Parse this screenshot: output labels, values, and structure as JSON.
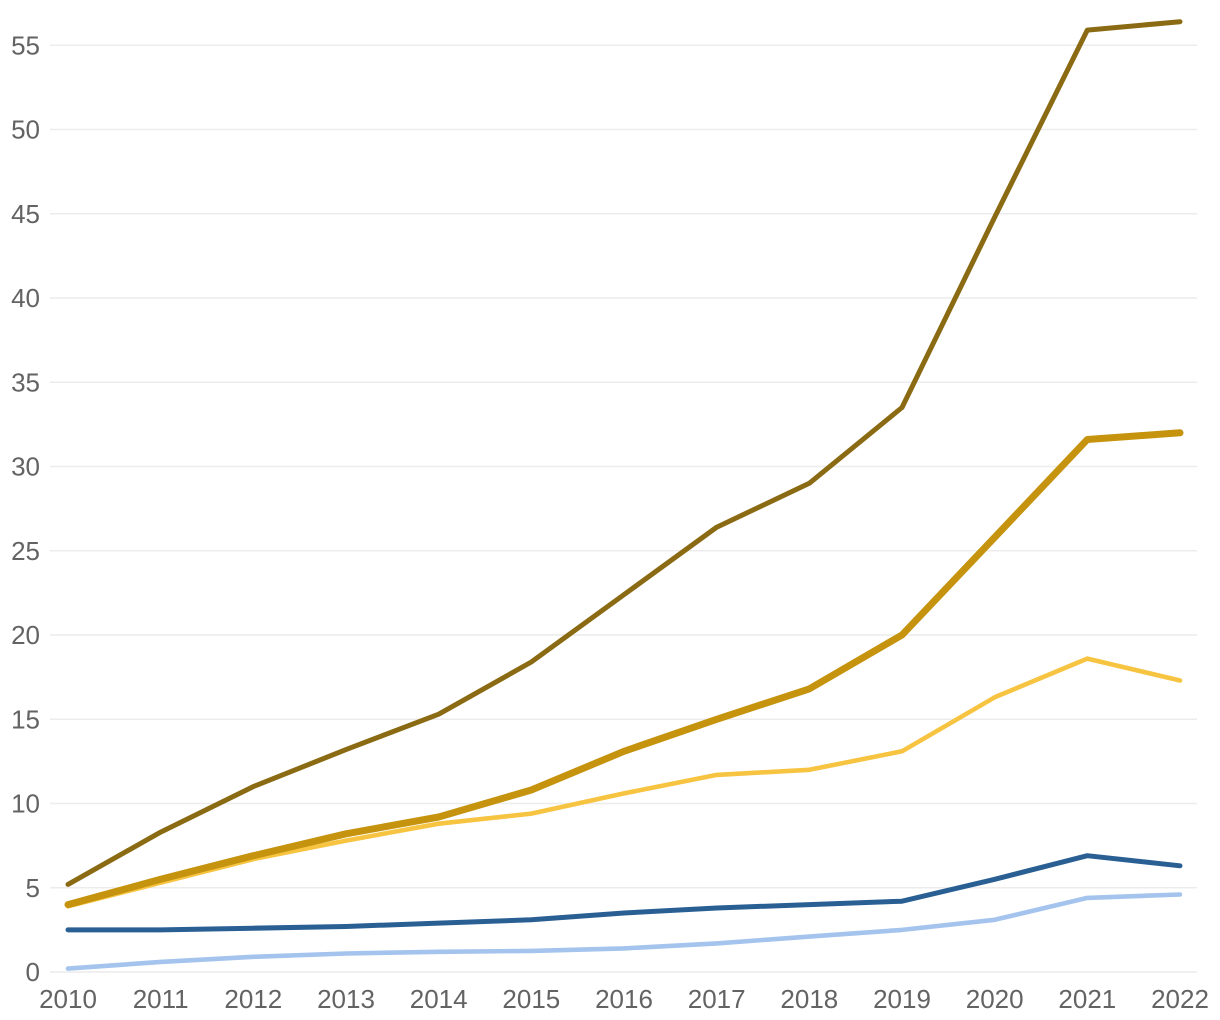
{
  "chart_data": {
    "type": "line",
    "title": "",
    "xlabel": "",
    "ylabel": "",
    "legend": "none",
    "grid": "horizontal",
    "x": [
      "2010",
      "2011",
      "2012",
      "2013",
      "2014",
      "2015",
      "2016",
      "2017",
      "2018",
      "2019",
      "2020",
      "2021",
      "2022"
    ],
    "y_ticks": [
      0,
      5,
      10,
      15,
      20,
      25,
      30,
      35,
      40,
      45,
      50,
      55
    ],
    "ylim": [
      0,
      57.7
    ],
    "series": [
      {
        "name": "olive-line",
        "color": "#8a6a12",
        "stroke_width": 5,
        "values": [
          5.2,
          8.3,
          11.0,
          13.2,
          15.3,
          18.4,
          22.4,
          26.4,
          29.0,
          33.5,
          44.8,
          55.9,
          56.4
        ]
      },
      {
        "name": "yellow-line",
        "color": "#f7c442",
        "stroke_width": 4.6,
        "values": [
          3.9,
          5.3,
          6.7,
          7.8,
          8.8,
          9.4,
          10.6,
          11.7,
          12.0,
          13.1,
          16.3,
          18.6,
          17.3
        ]
      },
      {
        "name": "golden-line",
        "color": "#c5930d",
        "stroke_width": 7,
        "values": [
          4.0,
          5.5,
          6.9,
          8.2,
          9.2,
          10.8,
          13.1,
          15.0,
          16.8,
          20.0,
          25.8,
          31.6,
          32.0
        ]
      },
      {
        "name": "dark-blue-line",
        "color": "#2a5f94",
        "stroke_width": 5,
        "values": [
          2.5,
          2.5,
          2.6,
          2.7,
          2.9,
          3.1,
          3.5,
          3.8,
          4.0,
          4.2,
          5.5,
          6.9,
          6.3
        ]
      },
      {
        "name": "light-blue-line",
        "color": "#a4c4ee",
        "stroke_width": 4.6,
        "values": [
          0.2,
          0.6,
          0.9,
          1.1,
          1.2,
          1.25,
          1.4,
          1.7,
          2.1,
          2.5,
          3.1,
          4.4,
          4.6
        ]
      }
    ]
  },
  "colors": {
    "background": "#ffffff",
    "grid": "#ececec",
    "tick_text": "#636363"
  }
}
